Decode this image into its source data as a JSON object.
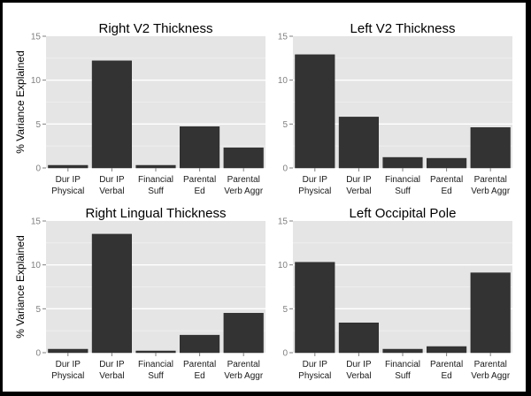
{
  "chart_data": [
    {
      "type": "bar",
      "title": "Right V2 Thickness",
      "ylabel": "% Variance Explained",
      "xlabel": "",
      "categories": [
        [
          "Dur IP",
          "Physical"
        ],
        [
          "Dur IP",
          "Verbal"
        ],
        [
          "Financial",
          "Suff"
        ],
        [
          "Parental",
          "Ed"
        ],
        [
          "Parental",
          "Verb Aggr"
        ]
      ],
      "values": [
        0.3,
        12.2,
        0.3,
        4.7,
        2.3
      ],
      "ylim": [
        0,
        15
      ],
      "yticks": [
        0,
        5,
        10,
        15
      ],
      "grid": true
    },
    {
      "type": "bar",
      "title": "Left V2 Thickness",
      "ylabel": "",
      "xlabel": "",
      "categories": [
        [
          "Dur IP",
          "Physical"
        ],
        [
          "Dur IP",
          "Verbal"
        ],
        [
          "Financial",
          "Suff"
        ],
        [
          "Parental",
          "Ed"
        ],
        [
          "Parental",
          "Verb Aggr"
        ]
      ],
      "values": [
        12.9,
        5.8,
        1.2,
        1.1,
        4.6
      ],
      "ylim": [
        0,
        15
      ],
      "yticks": [
        0,
        5,
        10,
        15
      ],
      "grid": true
    },
    {
      "type": "bar",
      "title": "Right Lingual Thickness",
      "ylabel": "% Variance Explained",
      "xlabel": "",
      "categories": [
        [
          "Dur IP",
          "Physical"
        ],
        [
          "Dur IP",
          "Verbal"
        ],
        [
          "Financial",
          "Suff"
        ],
        [
          "Parental",
          "Ed"
        ],
        [
          "Parental",
          "Verb Aggr"
        ]
      ],
      "values": [
        0.4,
        13.5,
        0.2,
        2.0,
        4.5
      ],
      "ylim": [
        0,
        15
      ],
      "yticks": [
        0,
        5,
        10,
        15
      ],
      "grid": true
    },
    {
      "type": "bar",
      "title": "Left Occipital Pole",
      "ylabel": "",
      "xlabel": "",
      "categories": [
        [
          "Dur IP",
          "Physical"
        ],
        [
          "Dur IP",
          "Verbal"
        ],
        [
          "Financial",
          "Suff"
        ],
        [
          "Parental",
          "Ed"
        ],
        [
          "Parental",
          "Verb Aggr"
        ]
      ],
      "values": [
        10.3,
        3.4,
        0.4,
        0.7,
        9.1
      ],
      "ylim": [
        0,
        15
      ],
      "yticks": [
        0,
        5,
        10,
        15
      ],
      "grid": true
    }
  ],
  "colors": {
    "bar": "#333333",
    "panel_bg": "#e5e5e5",
    "grid_major": "#ffffff",
    "grid_minor": "#f0f0f0",
    "tick_text": "#7f7f7f"
  }
}
